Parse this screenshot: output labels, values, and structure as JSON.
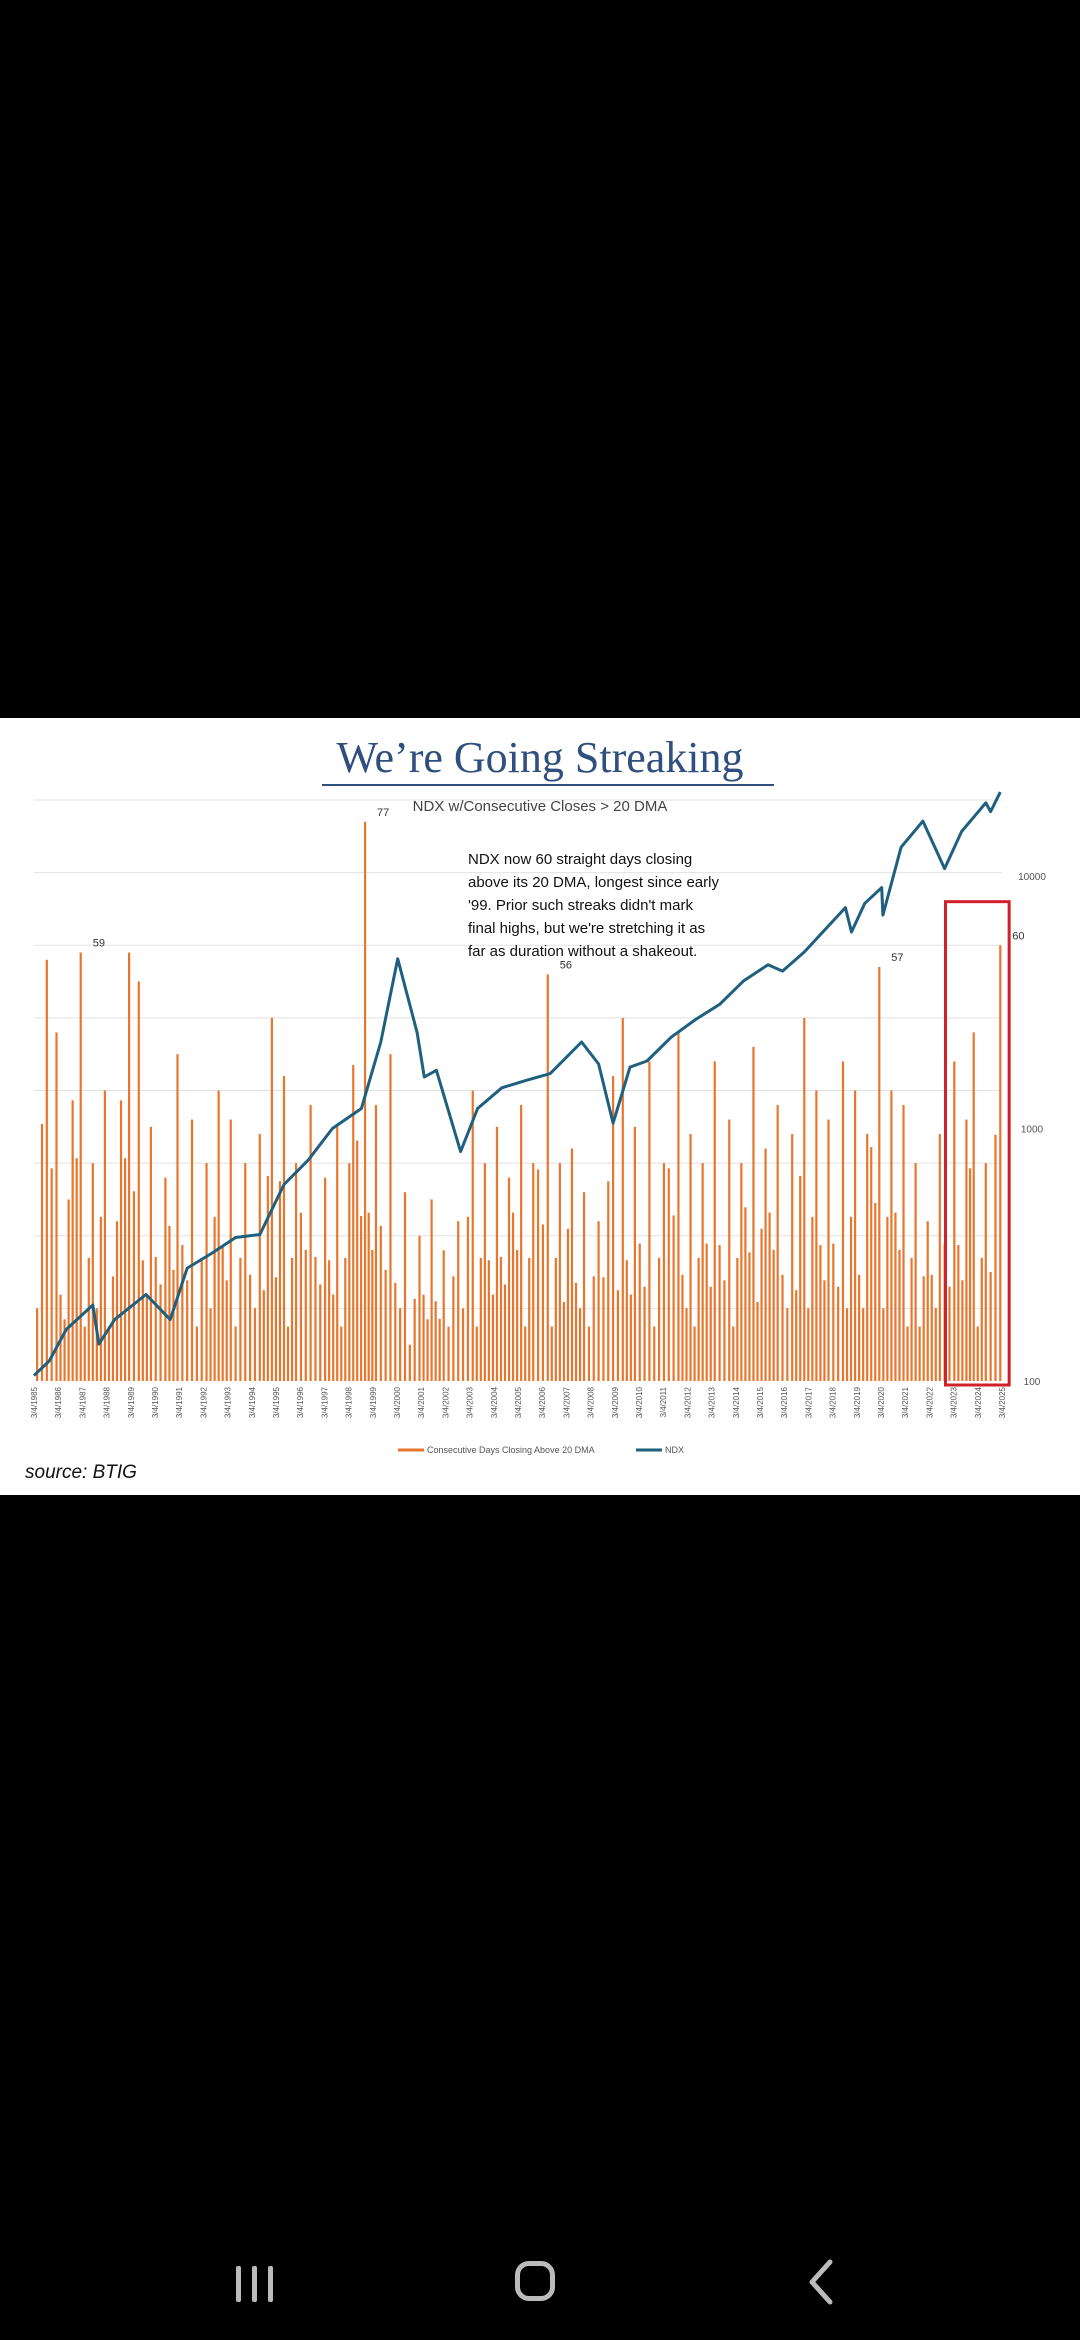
{
  "chart_data": {
    "type": "bar+line",
    "title": "We’re Going Streaking",
    "subtitle": "NDX w/Consecutive Closes > 20 DMA",
    "annotation": [
      "NDX now 60 straight days closing",
      "above its 20 DMA, longest since early",
      "'99. Prior such streaks didn't mark",
      "final highs, but we're stretching it as",
      "far as duration without a shakeout."
    ],
    "x_tick_labels": [
      "3/4/1985",
      "3/4/1986",
      "3/4/1987",
      "3/4/1988",
      "3/4/1989",
      "3/4/1990",
      "3/4/1991",
      "3/4/1992",
      "3/4/1993",
      "3/4/1994",
      "3/4/1995",
      "3/4/1996",
      "3/4/1997",
      "3/4/1998",
      "3/4/1999",
      "3/4/2000",
      "3/4/2001",
      "3/4/2002",
      "3/4/2003",
      "3/4/2004",
      "3/4/2005",
      "3/4/2006",
      "3/4/2007",
      "3/4/2008",
      "3/4/2009",
      "3/4/2010",
      "3/4/2011",
      "3/4/2012",
      "3/4/2013",
      "3/4/2014",
      "3/4/2015",
      "3/4/2016",
      "3/4/2017",
      "3/4/2018",
      "3/4/2019",
      "3/4/2020",
      "3/4/2021",
      "3/4/2022",
      "3/4/2023",
      "3/4/2024",
      "3/4/2025"
    ],
    "x_range": [
      1985.17,
      2025.17
    ],
    "y_right_ticks": [
      "10000",
      "1000",
      "100"
    ],
    "y_right_log": true,
    "y_right_range": [
      100,
      20000
    ],
    "y_left_range": [
      0,
      80
    ],
    "grid": true,
    "legend_position": "bottom",
    "series": [
      {
        "name": "Consecutive Days Closing Above 20 DMA",
        "axis": "left",
        "color": "#e8762d",
        "type": "bar"
      },
      {
        "name": "NDX",
        "axis": "right",
        "color": "#1f5f7f",
        "type": "line"
      }
    ],
    "streak_peaks": [
      {
        "year": 1985.3,
        "days": 10
      },
      {
        "year": 1985.7,
        "days": 58
      },
      {
        "year": 1986.1,
        "days": 48
      },
      {
        "year": 1986.6,
        "days": 25
      },
      {
        "year": 1987.1,
        "days": 59
      },
      {
        "year": 1987.6,
        "days": 30
      },
      {
        "year": 1988.1,
        "days": 40
      },
      {
        "year": 1988.6,
        "days": 22
      },
      {
        "year": 1989.1,
        "days": 59
      },
      {
        "year": 1989.5,
        "days": 55
      },
      {
        "year": 1990.0,
        "days": 35
      },
      {
        "year": 1990.6,
        "days": 28
      },
      {
        "year": 1991.1,
        "days": 45
      },
      {
        "year": 1991.7,
        "days": 36
      },
      {
        "year": 1992.3,
        "days": 30
      },
      {
        "year": 1992.8,
        "days": 40
      },
      {
        "year": 1993.3,
        "days": 36
      },
      {
        "year": 1993.9,
        "days": 30
      },
      {
        "year": 1994.5,
        "days": 34
      },
      {
        "year": 1995.0,
        "days": 50
      },
      {
        "year": 1995.5,
        "days": 42
      },
      {
        "year": 1996.0,
        "days": 30
      },
      {
        "year": 1996.6,
        "days": 38
      },
      {
        "year": 1997.2,
        "days": 28
      },
      {
        "year": 1997.7,
        "days": 35
      },
      {
        "year": 1998.2,
        "days": 30
      },
      {
        "year": 1998.85,
        "days": 77
      },
      {
        "year": 1999.3,
        "days": 38
      },
      {
        "year": 1999.9,
        "days": 45
      },
      {
        "year": 2000.5,
        "days": 26
      },
      {
        "year": 2001.1,
        "days": 20
      },
      {
        "year": 2001.6,
        "days": 25
      },
      {
        "year": 2002.1,
        "days": 18
      },
      {
        "year": 2002.7,
        "days": 22
      },
      {
        "year": 2003.3,
        "days": 40
      },
      {
        "year": 2003.8,
        "days": 30
      },
      {
        "year": 2004.3,
        "days": 35
      },
      {
        "year": 2004.8,
        "days": 28
      },
      {
        "year": 2005.3,
        "days": 38
      },
      {
        "year": 2005.8,
        "days": 30
      },
      {
        "year": 2006.4,
        "days": 56
      },
      {
        "year": 2006.9,
        "days": 30
      },
      {
        "year": 2007.4,
        "days": 32
      },
      {
        "year": 2007.9,
        "days": 26
      },
      {
        "year": 2008.5,
        "days": 22
      },
      {
        "year": 2009.1,
        "days": 42
      },
      {
        "year": 2009.5,
        "days": 50
      },
      {
        "year": 2010.0,
        "days": 35
      },
      {
        "year": 2010.6,
        "days": 44
      },
      {
        "year": 2011.2,
        "days": 30
      },
      {
        "year": 2011.8,
        "days": 48
      },
      {
        "year": 2012.3,
        "days": 34
      },
      {
        "year": 2012.8,
        "days": 30
      },
      {
        "year": 2013.3,
        "days": 44
      },
      {
        "year": 2013.9,
        "days": 36
      },
      {
        "year": 2014.4,
        "days": 30
      },
      {
        "year": 2014.9,
        "days": 46
      },
      {
        "year": 2015.4,
        "days": 32
      },
      {
        "year": 2015.9,
        "days": 38
      },
      {
        "year": 2016.5,
        "days": 34
      },
      {
        "year": 2017.0,
        "days": 50
      },
      {
        "year": 2017.5,
        "days": 40
      },
      {
        "year": 2018.0,
        "days": 36
      },
      {
        "year": 2018.6,
        "days": 44
      },
      {
        "year": 2019.1,
        "days": 40
      },
      {
        "year": 2019.6,
        "days": 34
      },
      {
        "year": 2020.1,
        "days": 57
      },
      {
        "year": 2020.6,
        "days": 40
      },
      {
        "year": 2021.1,
        "days": 38
      },
      {
        "year": 2021.6,
        "days": 30
      },
      {
        "year": 2022.1,
        "days": 22
      },
      {
        "year": 2022.6,
        "days": 34
      },
      {
        "year": 2023.2,
        "days": 44
      },
      {
        "year": 2023.7,
        "days": 36
      },
      {
        "year": 2024.0,
        "days": 48
      },
      {
        "year": 2024.5,
        "days": 30
      },
      {
        "year": 2025.1,
        "days": 60
      }
    ],
    "ndx_series": [
      {
        "year": 1985.17,
        "value": 105
      },
      {
        "year": 1985.8,
        "value": 120
      },
      {
        "year": 1986.5,
        "value": 160
      },
      {
        "year": 1987.6,
        "value": 200
      },
      {
        "year": 1987.85,
        "value": 140
      },
      {
        "year": 1988.5,
        "value": 175
      },
      {
        "year": 1989.8,
        "value": 220
      },
      {
        "year": 1990.8,
        "value": 175
      },
      {
        "year": 1991.5,
        "value": 280
      },
      {
        "year": 1992.5,
        "value": 320
      },
      {
        "year": 1993.5,
        "value": 370
      },
      {
        "year": 1994.5,
        "value": 380
      },
      {
        "year": 1995.5,
        "value": 600
      },
      {
        "year": 1996.5,
        "value": 750
      },
      {
        "year": 1997.5,
        "value": 1000
      },
      {
        "year": 1998.7,
        "value": 1200
      },
      {
        "year": 1999.5,
        "value": 2200
      },
      {
        "year": 2000.2,
        "value": 4700
      },
      {
        "year": 2001.0,
        "value": 2400
      },
      {
        "year": 2001.3,
        "value": 1600
      },
      {
        "year": 2001.8,
        "value": 1700
      },
      {
        "year": 2002.8,
        "value": 810
      },
      {
        "year": 2003.5,
        "value": 1200
      },
      {
        "year": 2004.5,
        "value": 1450
      },
      {
        "year": 2005.5,
        "value": 1550
      },
      {
        "year": 2006.5,
        "value": 1650
      },
      {
        "year": 2007.8,
        "value": 2200
      },
      {
        "year": 2008.5,
        "value": 1800
      },
      {
        "year": 2009.1,
        "value": 1050
      },
      {
        "year": 2009.8,
        "value": 1750
      },
      {
        "year": 2010.5,
        "value": 1850
      },
      {
        "year": 2011.5,
        "value": 2300
      },
      {
        "year": 2012.5,
        "value": 2700
      },
      {
        "year": 2013.5,
        "value": 3100
      },
      {
        "year": 2014.5,
        "value": 3850
      },
      {
        "year": 2015.5,
        "value": 4450
      },
      {
        "year": 2016.1,
        "value": 4200
      },
      {
        "year": 2017.0,
        "value": 5000
      },
      {
        "year": 2018.7,
        "value": 7500
      },
      {
        "year": 2018.95,
        "value": 6000
      },
      {
        "year": 2019.5,
        "value": 7800
      },
      {
        "year": 2020.2,
        "value": 9000
      },
      {
        "year": 2020.25,
        "value": 7000
      },
      {
        "year": 2021.0,
        "value": 13000
      },
      {
        "year": 2021.9,
        "value": 16500
      },
      {
        "year": 2022.8,
        "value": 10700
      },
      {
        "year": 2023.5,
        "value": 15000
      },
      {
        "year": 2024.5,
        "value": 19500
      },
      {
        "year": 2024.7,
        "value": 18000
      },
      {
        "year": 2025.1,
        "value": 21500
      }
    ],
    "peak_labels": [
      {
        "text": "59",
        "year": 1987.1,
        "days": 59
      },
      {
        "text": "77",
        "year": 1998.85,
        "days": 77
      },
      {
        "text": "56",
        "year": 2006.4,
        "days": 56
      },
      {
        "text": "57",
        "year": 2020.1,
        "days": 57
      },
      {
        "text": "60",
        "year": 2025.1,
        "days": 60
      }
    ],
    "highlight_box": {
      "color": "#d0202a",
      "year_range": [
        2023.0,
        2025.3
      ]
    }
  },
  "source": "source: BTIG",
  "nav": {
    "recent_icon": "recent-apps-icon",
    "home_icon": "home-icon",
    "back_icon": "back-icon",
    "icon_color": "#bbbbbb"
  }
}
